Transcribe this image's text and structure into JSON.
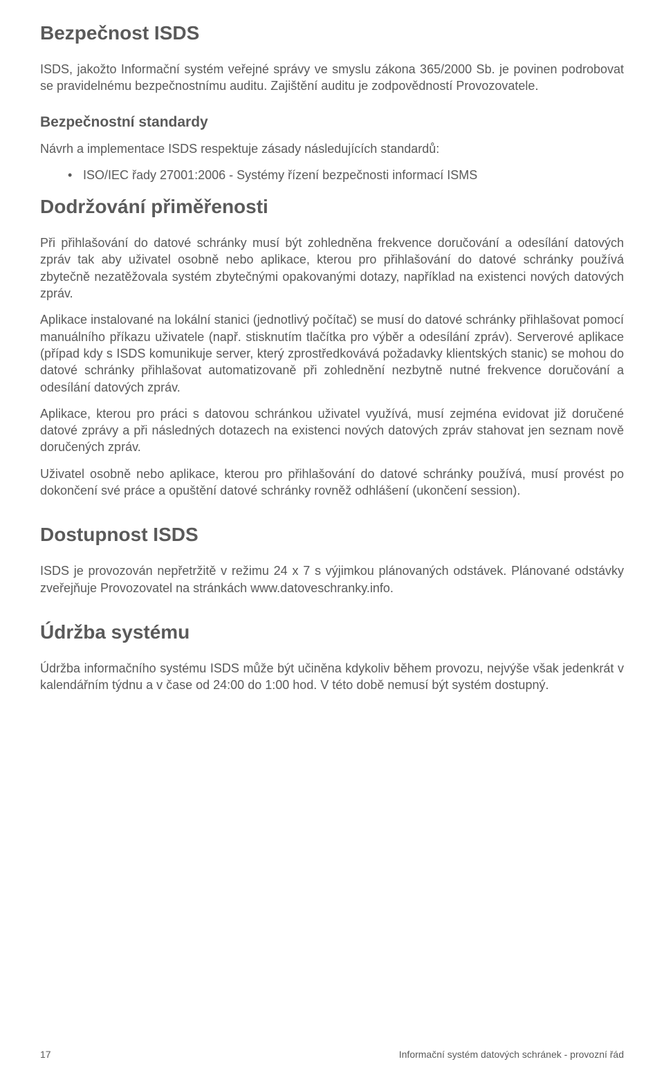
{
  "h1_1": "Bezpečnost ISDS",
  "p_1": "ISDS, jakožto Informační systém veřejné správy ve smyslu zákona 365/2000 Sb. je povinen podrobovat se pravidelnému bezpečnostnímu auditu. Zajištění auditu je zodpovědností Provozovatele.",
  "h2_1": "Bezpečnostní standardy",
  "p_2": "Návrh a implementace ISDS respektuje zásady následujících standardů:",
  "li_1": "ISO/IEC řady 27001:2006 - Systémy řízení bezpečnosti informací ISMS",
  "h1_2": "Dodržování přiměřenosti",
  "p_3": "Při přihlašování do datové schránky musí být zohledněna frekvence doručování a odesílání datových zpráv tak aby uživatel osobně nebo aplikace, kterou pro přihlašování do datové schránky používá zbytečně nezatěžovala systém zbytečnými opakovanými dotazy, například na existenci nových datových zpráv.",
  "p_4": "Aplikace instalované na lokální stanici (jednotlivý počítač) se musí do datové schránky přihlašovat pomocí manuálního příkazu uživatele (např. stisknutím tlačítka pro výběr a odesílání zpráv). Serverové aplikace (případ kdy s ISDS komunikuje server, který zprostředkovává požadavky klientských stanic) se mohou do datové schránky přihlašovat automatizovaně při zohlednění nezbytně nutné frekvence doručování a odesílání datových zpráv.",
  "p_5": "Aplikace, kterou pro práci s datovou schránkou uživatel využívá, musí zejména evidovat již doručené datové zprávy a při následných dotazech na existenci nových datových zpráv stahovat jen seznam nově doručených zpráv.",
  "p_6": "Uživatel osobně nebo aplikace, kterou pro přihlašování do datové schránky používá, musí provést po dokončení své práce a opuštění datové schránky rovněž odhlášení (ukončení session).",
  "h1_3": "Dostupnost ISDS",
  "p_7": "ISDS je provozován nepřetržitě v režimu 24 x 7 s výjimkou plánovaných odstávek. Plánované odstávky zveřejňuje Provozovatel na stránkách www.datoveschranky.info.",
  "h1_4": "Údržba systému",
  "p_8": "Údržba informačního systému ISDS může být učiněna kdykoliv během provozu, nejvýše však jedenkrát v kalendářním týdnu a v čase od 24:00 do 1:00 hod. V této době nemusí být systém dostupný.",
  "footer_page": "17",
  "footer_title": "Informační systém datových schránek - provozní řád"
}
